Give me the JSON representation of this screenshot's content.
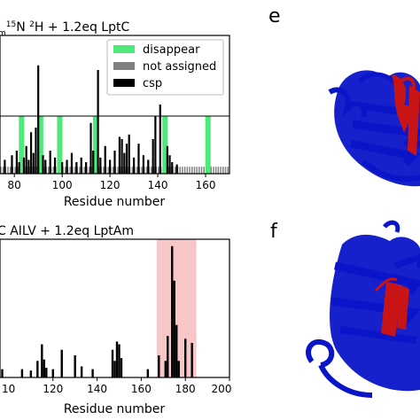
{
  "figure": {
    "panel_e_label": "e",
    "panel_f_label": "f",
    "protein_colors": {
      "primary": "#0a14c8",
      "highlight": "#c81414"
    }
  },
  "chart_data": [
    {
      "type": "bar",
      "title_parts": {
        "prefix": "m",
        "sup1": "15",
        "mid": "N ",
        "sup2": "2",
        "suffix": "H + 1.2eq LptC"
      },
      "xlabel": "Residue number",
      "ylabel": "",
      "xlim": [
        74,
        170
      ],
      "ylim": [
        0,
        0.6
      ],
      "xticks": [
        80,
        100,
        120,
        140,
        160
      ],
      "threshold": 0.25,
      "legend_position": "top-right",
      "legend": [
        {
          "label": "disappear",
          "color": "#4fe87a"
        },
        {
          "label": "not assigned",
          "color": "#808080"
        },
        {
          "label": "csp",
          "color": "#000000"
        }
      ],
      "disappear": [
        {
          "x": 83,
          "value": 0.25
        },
        {
          "x": 91,
          "value": 0.25
        },
        {
          "x": 99,
          "value": 0.25
        },
        {
          "x": 114,
          "value": 0.25
        },
        {
          "x": 143,
          "value": 0.25
        },
        {
          "x": 161,
          "value": 0.25
        }
      ],
      "not_assigned_level": 0.03,
      "csp": [
        {
          "x": 76,
          "value": 0.06
        },
        {
          "x": 79,
          "value": 0.08
        },
        {
          "x": 81,
          "value": 0.1
        },
        {
          "x": 82,
          "value": 0.05
        },
        {
          "x": 84,
          "value": 0.07
        },
        {
          "x": 85,
          "value": 0.12
        },
        {
          "x": 86,
          "value": 0.06
        },
        {
          "x": 87,
          "value": 0.18
        },
        {
          "x": 88,
          "value": 0.09
        },
        {
          "x": 89,
          "value": 0.2
        },
        {
          "x": 90,
          "value": 0.47
        },
        {
          "x": 92,
          "value": 0.08
        },
        {
          "x": 93,
          "value": 0.06
        },
        {
          "x": 95,
          "value": 0.1
        },
        {
          "x": 97,
          "value": 0.07
        },
        {
          "x": 100,
          "value": 0.05
        },
        {
          "x": 102,
          "value": 0.06
        },
        {
          "x": 104,
          "value": 0.09
        },
        {
          "x": 106,
          "value": 0.05
        },
        {
          "x": 108,
          "value": 0.07
        },
        {
          "x": 110,
          "value": 0.05
        },
        {
          "x": 112,
          "value": 0.22
        },
        {
          "x": 113,
          "value": 0.1
        },
        {
          "x": 115,
          "value": 0.45
        },
        {
          "x": 116,
          "value": 0.07
        },
        {
          "x": 118,
          "value": 0.12
        },
        {
          "x": 120,
          "value": 0.06
        },
        {
          "x": 122,
          "value": 0.1
        },
        {
          "x": 124,
          "value": 0.16
        },
        {
          "x": 125,
          "value": 0.15
        },
        {
          "x": 126,
          "value": 0.09
        },
        {
          "x": 127,
          "value": 0.13
        },
        {
          "x": 128,
          "value": 0.17
        },
        {
          "x": 130,
          "value": 0.07
        },
        {
          "x": 132,
          "value": 0.13
        },
        {
          "x": 134,
          "value": 0.08
        },
        {
          "x": 136,
          "value": 0.06
        },
        {
          "x": 138,
          "value": 0.15
        },
        {
          "x": 139,
          "value": 0.25
        },
        {
          "x": 141,
          "value": 0.3
        },
        {
          "x": 144,
          "value": 0.12
        },
        {
          "x": 145,
          "value": 0.08
        },
        {
          "x": 146,
          "value": 0.05
        },
        {
          "x": 148,
          "value": 0.04
        }
      ]
    },
    {
      "type": "bar",
      "title": "C AILV + 1.2eq LptAm",
      "xlabel": "Residue number",
      "ylabel": "",
      "xlim": [
        96,
        200
      ],
      "ylim": [
        0,
        1.0
      ],
      "xticks": [
        120,
        140,
        160,
        180,
        200
      ],
      "tick_labels_shown": [
        "120",
        "140",
        "160",
        "180",
        "200"
      ],
      "tick_label_partial": "10",
      "highlight_region": {
        "from": 167,
        "to": 185,
        "color": "#f7c6c6"
      },
      "csp": [
        {
          "x": 97,
          "value": 0.06
        },
        {
          "x": 106,
          "value": 0.06
        },
        {
          "x": 110,
          "value": 0.05
        },
        {
          "x": 113,
          "value": 0.12
        },
        {
          "x": 115,
          "value": 0.24
        },
        {
          "x": 116,
          "value": 0.13
        },
        {
          "x": 117,
          "value": 0.07
        },
        {
          "x": 120,
          "value": 0.06
        },
        {
          "x": 124,
          "value": 0.2
        },
        {
          "x": 130,
          "value": 0.16
        },
        {
          "x": 133,
          "value": 0.08
        },
        {
          "x": 138,
          "value": 0.06
        },
        {
          "x": 147,
          "value": 0.2
        },
        {
          "x": 148,
          "value": 0.12
        },
        {
          "x": 149,
          "value": 0.26
        },
        {
          "x": 150,
          "value": 0.24
        },
        {
          "x": 151,
          "value": 0.14
        },
        {
          "x": 163,
          "value": 0.06
        },
        {
          "x": 168,
          "value": 0.16
        },
        {
          "x": 171,
          "value": 0.12
        },
        {
          "x": 172,
          "value": 0.3
        },
        {
          "x": 174,
          "value": 0.95
        },
        {
          "x": 175,
          "value": 0.7
        },
        {
          "x": 176,
          "value": 0.38
        },
        {
          "x": 177,
          "value": 0.12
        },
        {
          "x": 180,
          "value": 0.28
        },
        {
          "x": 183,
          "value": 0.25
        }
      ]
    }
  ]
}
